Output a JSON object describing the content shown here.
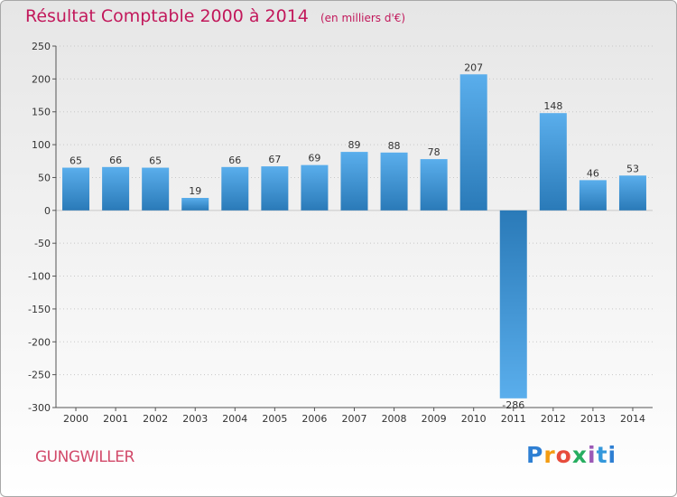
{
  "header": {
    "title": "Résultat Comptable 2000 à 2014",
    "subtitle": "(en milliers d'€)"
  },
  "footer": {
    "commune": "GUNGWILLER",
    "brand": "Proxiti"
  },
  "colors": {
    "title": "#c2185b",
    "bar_light": "#5aaeec",
    "bar_dark": "#2a7ab8",
    "grid": "#c8c8c8"
  },
  "chart_data": {
    "type": "bar",
    "title": "Résultat Comptable 2000 à 2014",
    "subtitle": "(en milliers d'€)",
    "xlabel": "",
    "ylabel": "",
    "categories": [
      "2000",
      "2001",
      "2002",
      "2003",
      "2004",
      "2005",
      "2006",
      "2007",
      "2008",
      "2009",
      "2010",
      "2011",
      "2012",
      "2013",
      "2014"
    ],
    "values": [
      65,
      66,
      65,
      19,
      66,
      67,
      69,
      89,
      88,
      78,
      207,
      -286,
      148,
      46,
      53
    ],
    "ylim": [
      -300,
      250
    ],
    "yticks": [
      250,
      200,
      150,
      100,
      50,
      0,
      -50,
      -100,
      -150,
      -200,
      -250,
      -300
    ],
    "grid": true,
    "legend": "none"
  }
}
